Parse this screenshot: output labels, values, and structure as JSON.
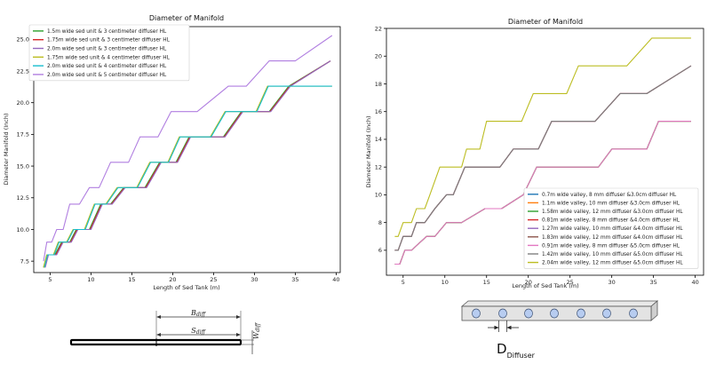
{
  "chart_data": [
    {
      "type": "line",
      "title": "Diameter of Manifold",
      "xlabel": "Length of Sed Tank (m)",
      "ylabel": "Diameter Manifold (Inch)",
      "xlim": [
        3.0,
        40.5
      ],
      "ylim": [
        6.6,
        26.0
      ],
      "xticks": [
        5,
        10,
        15,
        20,
        25,
        30,
        35,
        40
      ],
      "yticks": [
        7.5,
        10.0,
        12.5,
        15.0,
        17.5,
        20.0,
        22.5,
        25.0
      ],
      "xtick_labels": [
        "5",
        "10",
        "15",
        "20",
        "25",
        "30",
        "35",
        "40"
      ],
      "ytick_labels": [
        "7.5",
        "10.0",
        "12.5",
        "15.0",
        "17.5",
        "20.0",
        "22.5",
        "25.0"
      ],
      "legend": "top-left",
      "grid": false,
      "series": [
        {
          "name": "1.5m wide sed unit & 3 centimeter diffuser HL",
          "color": "#2ca02c",
          "x": [
            4.2,
            4.6,
            5.6,
            6.4,
            7.4,
            8.2,
            9.8,
            11.2,
            12.4,
            14.0,
            16.6,
            18.4,
            20.4,
            22.0,
            26.2,
            28.4,
            31.8,
            34.2,
            39.3
          ],
          "y": [
            7.0,
            8.0,
            8.0,
            9.0,
            9.0,
            10.0,
            10.0,
            12.0,
            12.0,
            13.3,
            13.3,
            15.3,
            15.3,
            17.3,
            17.3,
            19.3,
            19.3,
            21.3,
            23.3
          ]
        },
        {
          "name": "1.75m wide sed unit & 3 centimeter diffuser HL",
          "color": "#d62728",
          "x": [
            4.3,
            4.7,
            5.7,
            6.5,
            7.5,
            8.3,
            9.9,
            11.3,
            12.5,
            14.1,
            16.7,
            18.5,
            20.5,
            22.1,
            26.3,
            28.5,
            31.9,
            34.3,
            39.3
          ],
          "y": [
            7.0,
            8.0,
            8.0,
            9.0,
            9.0,
            10.0,
            10.0,
            12.0,
            12.0,
            13.3,
            13.3,
            15.3,
            15.3,
            17.3,
            17.3,
            19.3,
            19.3,
            21.3,
            23.3
          ]
        },
        {
          "name": "2.0m wide sed unit & 3 centimeter diffuser HL",
          "color": "#9467bd",
          "x": [
            4.4,
            4.8,
            5.8,
            6.6,
            7.6,
            8.4,
            10.0,
            11.4,
            12.6,
            14.2,
            16.8,
            18.6,
            20.6,
            22.2,
            26.4,
            28.6,
            32.0,
            34.4,
            39.3
          ],
          "y": [
            7.0,
            8.0,
            8.0,
            9.0,
            9.0,
            10.0,
            10.0,
            12.0,
            12.0,
            13.3,
            13.3,
            15.3,
            15.3,
            17.3,
            17.3,
            19.3,
            19.3,
            21.3,
            23.3
          ]
        },
        {
          "name": "1.75m wide sed unit & 4 centimeter diffuser HL",
          "color": "#bcbd22",
          "x": [
            4.2,
            4.6,
            5.4,
            6.0,
            7.0,
            7.8,
            9.2,
            10.4,
            11.8,
            13.2,
            15.6,
            17.2,
            19.4,
            20.8,
            24.6,
            26.4,
            30.2,
            31.6,
            39.5
          ],
          "y": [
            7.0,
            8.0,
            8.0,
            9.0,
            9.0,
            10.0,
            10.0,
            12.0,
            12.0,
            13.3,
            13.3,
            15.3,
            15.3,
            17.3,
            17.3,
            19.3,
            19.3,
            21.3,
            21.3
          ]
        },
        {
          "name": "2.0m wide sed unit & 4 centimeter diffuser HL",
          "color": "#17becf",
          "x": [
            4.3,
            4.7,
            5.5,
            6.1,
            7.1,
            7.9,
            9.3,
            10.5,
            11.9,
            13.3,
            15.7,
            17.3,
            19.5,
            20.9,
            24.7,
            26.5,
            30.3,
            31.7,
            39.5
          ],
          "y": [
            7.0,
            8.0,
            8.0,
            9.0,
            9.0,
            10.0,
            10.0,
            12.0,
            12.0,
            13.3,
            13.3,
            15.3,
            15.3,
            17.3,
            17.3,
            19.3,
            19.3,
            21.3,
            21.3
          ]
        },
        {
          "name": "2.0m wide sed unit & 5 centimeter diffuser HL",
          "color": "#b07ee0",
          "x": [
            4.2,
            4.6,
            5.2,
            5.8,
            6.6,
            7.4,
            8.6,
            9.8,
            11.0,
            12.4,
            14.6,
            16.0,
            18.2,
            19.8,
            23.0,
            26.8,
            29.0,
            31.8,
            35.0,
            39.5
          ],
          "y": [
            7.5,
            9.0,
            9.0,
            10.0,
            10.0,
            12.0,
            12.0,
            13.3,
            13.3,
            15.3,
            15.3,
            17.3,
            17.3,
            19.3,
            19.3,
            21.3,
            21.3,
            23.3,
            23.3,
            25.3
          ]
        }
      ]
    },
    {
      "type": "line",
      "title": "Diameter of Manifold",
      "xlabel": "Length of Sed Tank (m)",
      "ylabel": "Diameter Manifold (Inch)",
      "xlim": [
        3.0,
        41.0
      ],
      "ylim": [
        4.2,
        22.0
      ],
      "xticks": [
        5,
        10,
        15,
        20,
        25,
        30,
        35,
        40
      ],
      "yticks": [
        6,
        8,
        10,
        12,
        14,
        16,
        18,
        20,
        22
      ],
      "xtick_labels": [
        "5",
        "10",
        "15",
        "20",
        "25",
        "30",
        "35",
        "40"
      ],
      "ytick_labels": [
        "6",
        "8",
        "10",
        "12",
        "14",
        "16",
        "18",
        "20",
        "22"
      ],
      "legend": "lower-right",
      "grid": false,
      "series": [
        {
          "name": "0.7m wide valley, 8 mm diffuser &3.0cm diffuser HL",
          "color": "#1f77b4",
          "x": [
            4.0,
            4.6,
            5.2,
            6.0,
            7.8,
            8.8,
            10.2,
            12.0,
            14.8,
            16.8,
            19.4,
            21.0,
            28.4,
            30.0,
            34.2,
            35.6,
            39.5
          ],
          "y": [
            5.0,
            5.0,
            6.0,
            6.0,
            7.0,
            7.0,
            8.0,
            8.0,
            9.0,
            9.0,
            10.0,
            12.0,
            12.0,
            13.3,
            13.3,
            15.3,
            15.3
          ]
        },
        {
          "name": "1.1m wide valley, 10 mm diffuser &3.0cm diffuser HL",
          "color": "#ff7f0e",
          "x": [
            4.0,
            4.6,
            5.2,
            6.0,
            7.8,
            8.8,
            10.2,
            12.0,
            14.8,
            16.8,
            19.4,
            21.0,
            28.4,
            30.0,
            34.2,
            35.6,
            39.5
          ],
          "y": [
            5.0,
            5.0,
            6.0,
            6.0,
            7.0,
            7.0,
            8.0,
            8.0,
            9.0,
            9.0,
            10.0,
            12.0,
            12.0,
            13.3,
            13.3,
            15.3,
            15.3
          ]
        },
        {
          "name": "1.58m wide valley, 12 mm diffuser &3.0cm diffuser HL",
          "color": "#2ca02c",
          "x": [
            4.0,
            4.6,
            5.2,
            6.0,
            7.8,
            8.8,
            10.2,
            12.0,
            14.8,
            16.8,
            19.4,
            21.0,
            28.4,
            30.0,
            34.2,
            35.6,
            39.5
          ],
          "y": [
            5.0,
            5.0,
            6.0,
            6.0,
            7.0,
            7.0,
            8.0,
            8.0,
            9.0,
            9.0,
            10.0,
            12.0,
            12.0,
            13.3,
            13.3,
            15.3,
            15.3
          ]
        },
        {
          "name": "0.81m wide valley, 8 mm diffuser &4.0cm diffuser HL",
          "color": "#d62728",
          "x": [
            4.0,
            4.4,
            5.0,
            6.0,
            6.6,
            7.6,
            8.8,
            10.2,
            11.0,
            12.4,
            16.6,
            18.2,
            21.2,
            22.8,
            28.0,
            31.0,
            34.2,
            39.5
          ],
          "y": [
            6.0,
            6.0,
            7.0,
            7.0,
            8.0,
            8.0,
            9.0,
            10.0,
            10.0,
            12.0,
            12.0,
            13.3,
            13.3,
            15.3,
            15.3,
            17.3,
            17.3,
            19.3
          ]
        },
        {
          "name": "1.27m wide valley, 10 mm diffuser &4.0cm diffuser HL",
          "color": "#9467bd",
          "x": [
            4.0,
            4.4,
            5.0,
            6.0,
            6.6,
            7.6,
            8.8,
            10.2,
            11.0,
            12.4,
            16.6,
            18.2,
            21.2,
            22.8,
            28.0,
            31.0,
            34.2,
            39.5
          ],
          "y": [
            6.0,
            6.0,
            7.0,
            7.0,
            8.0,
            8.0,
            9.0,
            10.0,
            10.0,
            12.0,
            12.0,
            13.3,
            13.3,
            15.3,
            15.3,
            17.3,
            17.3,
            19.3
          ]
        },
        {
          "name": "1.83m wide valley, 12 mm diffuser &4.0cm diffuser HL",
          "color": "#8c564b",
          "x": [
            4.0,
            4.4,
            5.0,
            6.0,
            6.6,
            7.6,
            8.8,
            10.2,
            11.0,
            12.4,
            16.6,
            18.2,
            21.2,
            22.8,
            28.0,
            31.0,
            34.2,
            39.5
          ],
          "y": [
            6.0,
            6.0,
            7.0,
            7.0,
            8.0,
            8.0,
            9.0,
            10.0,
            10.0,
            12.0,
            12.0,
            13.3,
            13.3,
            15.3,
            15.3,
            17.3,
            17.3,
            19.3
          ]
        },
        {
          "name": "0.91m wide valley, 8 mm diffuser &5.0cm diffuser HL",
          "color": "#e377c2",
          "x": [
            4.0,
            4.6,
            5.2,
            6.0,
            7.8,
            8.8,
            10.2,
            12.0,
            14.8,
            16.8,
            19.4,
            21.0,
            28.4,
            30.0,
            34.2,
            35.6,
            39.5
          ],
          "y": [
            5.0,
            5.0,
            6.0,
            6.0,
            7.0,
            7.0,
            8.0,
            8.0,
            9.0,
            9.0,
            10.0,
            12.0,
            12.0,
            13.3,
            13.3,
            15.3,
            15.3
          ]
        },
        {
          "name": "1.42m wide valley, 10 mm diffuser &5.0cm diffuser HL",
          "color": "#7f7f7f",
          "x": [
            4.0,
            4.4,
            5.0,
            6.0,
            6.6,
            7.6,
            8.8,
            10.2,
            11.0,
            12.4,
            16.6,
            18.2,
            21.2,
            22.8,
            28.0,
            31.0,
            34.2,
            39.5
          ],
          "y": [
            6.0,
            6.0,
            7.0,
            7.0,
            8.0,
            8.0,
            9.0,
            10.0,
            10.0,
            12.0,
            12.0,
            13.3,
            13.3,
            15.3,
            15.3,
            17.3,
            17.3,
            19.3
          ]
        },
        {
          "name": "2.04m wide valley, 12 mm diffuser &5.0cm diffuser HL",
          "color": "#bcbd22",
          "x": [
            4.0,
            4.4,
            5.0,
            6.0,
            6.6,
            7.6,
            8.2,
            9.4,
            12.0,
            12.6,
            14.2,
            15.0,
            19.2,
            20.6,
            24.6,
            26.0,
            31.8,
            34.8,
            39.5
          ],
          "y": [
            7.0,
            7.0,
            8.0,
            8.0,
            9.0,
            9.0,
            10.0,
            12.0,
            12.0,
            13.3,
            13.3,
            15.3,
            15.3,
            17.3,
            17.3,
            19.3,
            19.3,
            21.3,
            21.3
          ]
        }
      ]
    }
  ],
  "diagrams": {
    "manifold": {
      "b_label": "B",
      "b_sub": "diff",
      "s_label": "S",
      "s_sub": "diff",
      "w_label": "W",
      "w_sub": "diff"
    },
    "diffuser": {
      "d_label": "D",
      "d_sub": "Diffuser"
    }
  }
}
